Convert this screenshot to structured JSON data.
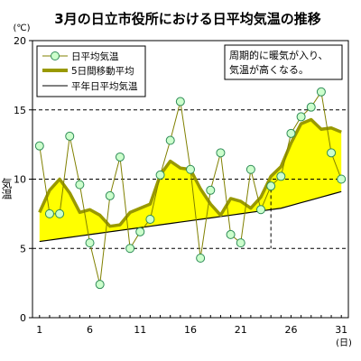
{
  "chart_data": {
    "type": "line",
    "title": "3月の日立市役所における日平均気温の推移",
    "ylabel": "気温",
    "y_unit": "(℃)",
    "x_unit": "(日)",
    "x": [
      1,
      2,
      3,
      4,
      5,
      6,
      7,
      8,
      9,
      10,
      11,
      12,
      13,
      14,
      15,
      16,
      17,
      18,
      19,
      20,
      21,
      22,
      23,
      24,
      25,
      26,
      27,
      28,
      29,
      30,
      31
    ],
    "x_tick_labels": [
      "1",
      "6",
      "11",
      "16",
      "21",
      "26",
      "31"
    ],
    "x_tick_values": [
      1,
      6,
      11,
      16,
      21,
      26,
      31
    ],
    "ylim": [
      0,
      20
    ],
    "y_ticks": [
      0,
      5,
      10,
      15,
      20
    ],
    "dashed_grid_y": [
      5,
      10,
      15
    ],
    "series": [
      {
        "name": "日平均気温",
        "style": "line-with-circle-markers",
        "color": "#808000",
        "marker_fill": "#ccffcc",
        "marker_stroke": "#2e8b57",
        "values": [
          12.4,
          7.5,
          7.5,
          13.1,
          9.6,
          5.4,
          2.4,
          8.8,
          11.6,
          5.0,
          6.2,
          7.1,
          10.3,
          12.8,
          15.6,
          10.7,
          4.3,
          9.2,
          11.9,
          6.0,
          5.4,
          10.7,
          7.8,
          9.5,
          10.2,
          13.3,
          14.5,
          15.2,
          16.3,
          11.9,
          10.0
        ]
      },
      {
        "name": "5日間移動平均",
        "style": "thick-line",
        "color": "#999900",
        "values": [
          7.6,
          9.2,
          10.0,
          9.0,
          7.6,
          7.8,
          7.4,
          6.6,
          6.7,
          7.6,
          7.9,
          8.2,
          10.3,
          11.3,
          10.8,
          10.7,
          9.3,
          8.2,
          7.4,
          8.6,
          8.4,
          7.9,
          8.7,
          10.2,
          10.9,
          12.6,
          14.0,
          14.3,
          13.6,
          13.7,
          13.4
        ]
      },
      {
        "name": "平年日平均気温",
        "style": "thin-line",
        "color": "#000000",
        "values": [
          5.5,
          5.6,
          5.7,
          5.8,
          5.9,
          6.0,
          6.1,
          6.2,
          6.3,
          6.4,
          6.5,
          6.6,
          6.7,
          6.8,
          6.9,
          7.0,
          7.1,
          7.2,
          7.3,
          7.4,
          7.5,
          7.6,
          7.7,
          7.8,
          7.9,
          8.1,
          8.3,
          8.5,
          8.7,
          8.9,
          9.1
        ]
      }
    ],
    "fill_between": {
      "upper": "5日間移動平均",
      "lower": "平年日平均気温",
      "color": "#ffff00"
    },
    "vertical_dashed_marker_x": 24,
    "annotation": [
      "周期的に暖気が入り、",
      "気温が高くなる。"
    ],
    "legend_position": "top-left",
    "grid": "dashed-horizontal"
  }
}
